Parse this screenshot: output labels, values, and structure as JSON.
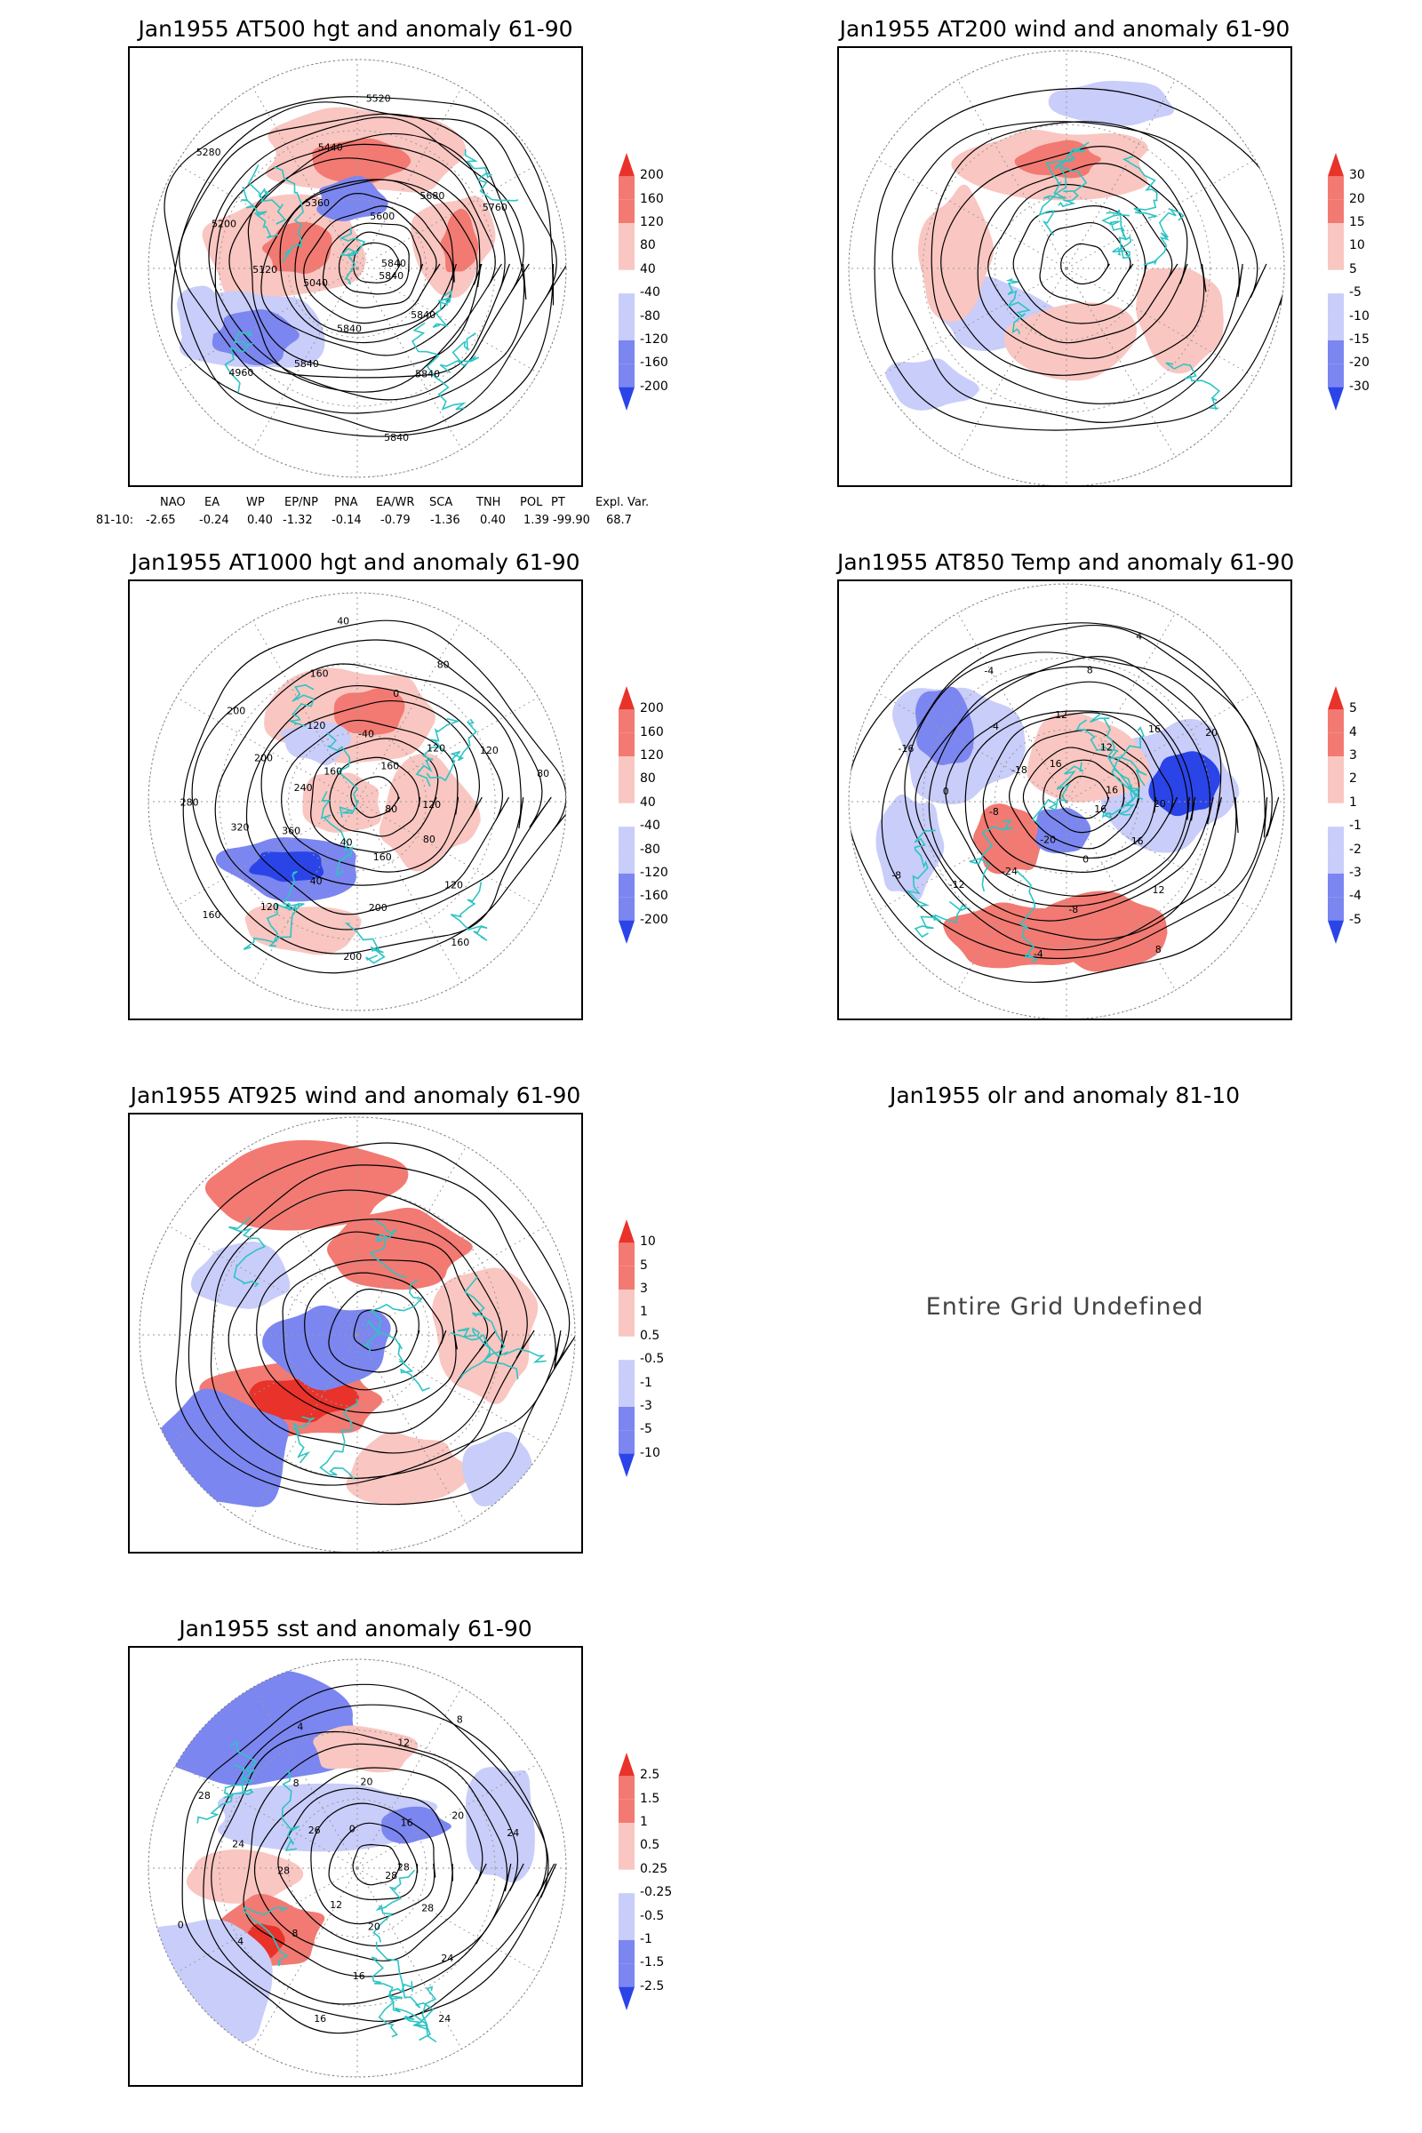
{
  "colors": {
    "coast": "#2ec4c4",
    "red_strong": "#e8322a",
    "red_mid": "#f27a72",
    "red_light": "#f9c6c1",
    "blue_strong": "#2a44e8",
    "blue_mid": "#7b86f0",
    "blue_light": "#c9cdf9",
    "contour": "#000000",
    "grid": "#9a9a9a"
  },
  "panels": [
    {
      "id": "p500",
      "title": "Jan1955 AT500 hgt and anomaly 61-90",
      "colorbar": [
        "200",
        "160",
        "120",
        "80",
        "40",
        "-40",
        "-80",
        "-120",
        "-160",
        "-200"
      ],
      "contour_labels": [
        "5840",
        "5840",
        "5840",
        "5840",
        "5840",
        "5840",
        "4960",
        "5040",
        "5120",
        "5200",
        "5280",
        "5360",
        "5440",
        "5520",
        "5600",
        "5680",
        "5760",
        "5840"
      ]
    },
    {
      "id": "p200",
      "title": "Jan1955 AT200 wind and anomaly 61-90",
      "colorbar": [
        "30",
        "20",
        "15",
        "10",
        "5",
        "-5",
        "-10",
        "-15",
        "-20",
        "-30"
      ],
      "contour_labels": []
    },
    {
      "id": "p1000",
      "title": "Jan1955 AT1000 hgt and anomaly 61-90",
      "colorbar": [
        "200",
        "160",
        "120",
        "80",
        "40",
        "-40",
        "-80",
        "-120",
        "-160",
        "-200"
      ],
      "contour_labels": [
        "80",
        "80",
        "120",
        "160",
        "160",
        "200",
        "200",
        "40",
        "40",
        "120",
        "160",
        "360",
        "320",
        "280",
        "240",
        "200",
        "200",
        "160",
        "120",
        "160",
        "40",
        "-40",
        "0",
        "80",
        "160",
        "120",
        "120",
        "80",
        "120"
      ]
    },
    {
      "id": "p850",
      "title": "Jan1955 AT850 Temp and anomaly 61-90",
      "colorbar": [
        "5",
        "4",
        "3",
        "2",
        "1",
        "-1",
        "-2",
        "-3",
        "-4",
        "-5"
      ],
      "contour_labels": [
        "16",
        "16",
        "12",
        "8",
        "0",
        "-8",
        "-4",
        "-20",
        "-24",
        "-12",
        "-8",
        "-8",
        "0",
        "-16",
        "-18",
        "-4",
        "-4",
        "16",
        "12",
        "8",
        "4",
        "12",
        "16",
        "20",
        "16",
        "20"
      ]
    },
    {
      "id": "p925",
      "title": "Jan1955 AT925 wind and anomaly 61-90",
      "colorbar": [
        "10",
        "5",
        "3",
        "1",
        "0.5",
        "-0.5",
        "-1",
        "-3",
        "-5",
        "-10"
      ],
      "contour_labels": []
    },
    {
      "id": "polr",
      "title": "Jan1955 olr and anomaly 81-10",
      "undefined_text": "Entire Grid Undefined"
    },
    {
      "id": "psst",
      "title": "Jan1955 sst and anomaly 61-90",
      "colorbar": [
        "2.5",
        "1.5",
        "1",
        "0.5",
        "0.25",
        "-0.25",
        "-0.5",
        "-1",
        "-1.5",
        "-2.5"
      ],
      "contour_labels": [
        "28",
        "28",
        "24",
        "24",
        "20",
        "16",
        "16",
        "12",
        "8",
        "4",
        "0",
        "28",
        "24",
        "28",
        "26",
        "8",
        "4",
        "0",
        "20",
        "12",
        "8",
        "16",
        "20",
        "24",
        "28"
      ]
    }
  ],
  "indices": {
    "headers": [
      "NAO",
      "EA",
      "WP",
      "EP/NP",
      "PNA",
      "EA/WR",
      "SCA",
      "TNH",
      "POL",
      "PT",
      "Expl. Var."
    ],
    "row_label": "81-10:",
    "values": [
      "-2.65",
      "-0.24",
      "0.40",
      "-1.32",
      "-0.14",
      "-0.79",
      "-1.36",
      "0.40",
      "1.39",
      "-99.90",
      "68.7"
    ]
  }
}
